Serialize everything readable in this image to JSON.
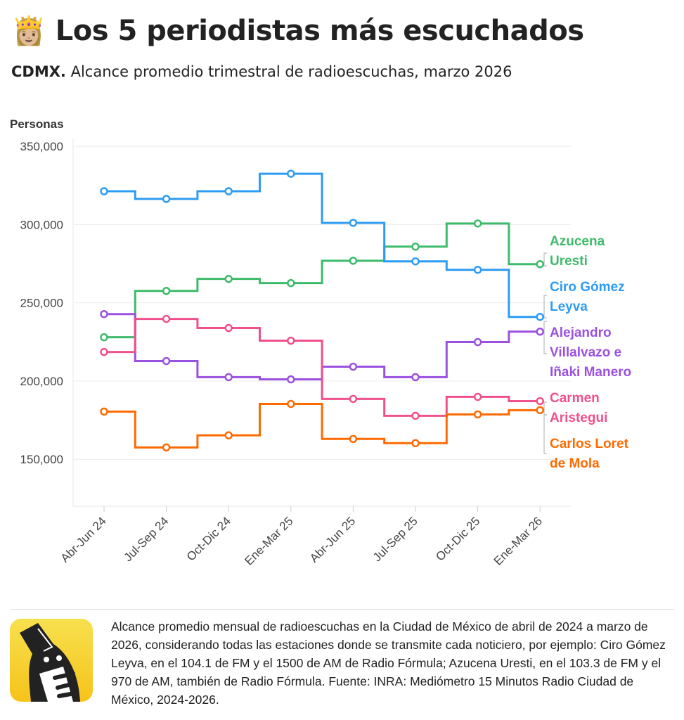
{
  "header": {
    "emoji": "👸🏼",
    "title": "Los 5 periodistas más escuchados",
    "subtitle_bold": "CDMX.",
    "subtitle": " Alcance promedio trimestral de radioescuchas, marzo 2026"
  },
  "chart_data": {
    "type": "line",
    "step": true,
    "ylabel": "Personas",
    "ylim": [
      120000,
      355000
    ],
    "yticks": [
      150000,
      200000,
      250000,
      300000,
      350000
    ],
    "ytick_labels": [
      "150,000",
      "200,000",
      "250,000",
      "300,000",
      "350,000"
    ],
    "grid": true,
    "categories": [
      "Abr-Jun 24",
      "Jul-Sep 24",
      "Oct-Dic 24",
      "Ene-Mar 25",
      "Abr-Jun 25",
      "Jul-Sep 25",
      "Oct-Dic 25",
      "Ene-Mar 26"
    ],
    "series": [
      {
        "name": "Azucena Uresti",
        "color": "#3dbb6a",
        "values": [
          228000,
          257600,
          265300,
          262600,
          276900,
          285900,
          300700,
          274700
        ]
      },
      {
        "name": "Ciro Gómez Leyva",
        "color": "#2d9cf4",
        "values": [
          321300,
          316400,
          321300,
          332500,
          301100,
          276500,
          271100,
          241000
        ]
      },
      {
        "name": "Alejandro Villalvazo e Iñaki Manero",
        "color": "#9b51e0",
        "values": [
          242800,
          212800,
          202500,
          201100,
          209200,
          202500,
          224900,
          231600
        ]
      },
      {
        "name": "Carmen Aristegui",
        "color": "#f0508c",
        "values": [
          218600,
          239700,
          233900,
          225800,
          188600,
          177800,
          189900,
          187200
        ]
      },
      {
        "name": "Carlos Loret de Mola",
        "color": "#ff6a00",
        "values": [
          180500,
          157600,
          165300,
          185400,
          163000,
          160300,
          178700,
          181400
        ]
      }
    ]
  },
  "labels": {
    "azucena": [
      "Azucena",
      "Uresti"
    ],
    "ciro": [
      "Ciro Gómez",
      "Leyva"
    ],
    "alejandro": [
      "Alejandro",
      "Villalvazo e",
      "Iñaki Manero"
    ],
    "carmen": [
      "Carmen",
      "Aristegui"
    ],
    "carlos": [
      "Carlos Loret",
      "de Mola"
    ]
  },
  "footer": {
    "logo": "logo",
    "note": "Alcance promedio mensual de radioescuchas en la Ciudad de México de abril de 2024 a marzo de 2026, considerando todas las estaciones donde se transmite cada noticiero, por ejemplo: Ciro Gómez Leyva, en el 104.1 de FM y el 1500 de AM de Radio Fórmula; Azucena Uresti, en el 103.3 de FM y el 970 de AM, también de Radio Fórmula. Fuente: INRA: Mediómetro 15 Minutos Radio Ciudad de México, 2024-2026."
  }
}
